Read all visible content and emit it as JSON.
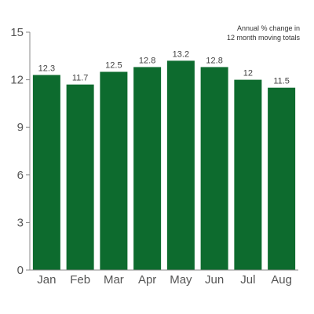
{
  "chart_data": {
    "type": "bar",
    "title": "",
    "xlabel": "",
    "ylabel": "",
    "annotation": [
      "Annual % change in",
      "12 month moving totals"
    ],
    "categories": [
      "Jan",
      "Feb",
      "Mar",
      "Apr",
      "May",
      "Jun",
      "Jul",
      "Aug"
    ],
    "values": [
      12.3,
      11.7,
      12.5,
      12.8,
      13.2,
      12.8,
      12,
      11.5
    ],
    "value_labels": [
      "12.3",
      "11.7",
      "12.5",
      "12.8",
      "13.2",
      "12.8",
      "12",
      "11.5"
    ],
    "ylim": [
      0,
      15
    ],
    "yticks": [
      0,
      3,
      6,
      9,
      12,
      15
    ],
    "grid": false,
    "legend": "none",
    "bar_color": "#0d6b2e",
    "axis_color": "#888888"
  }
}
